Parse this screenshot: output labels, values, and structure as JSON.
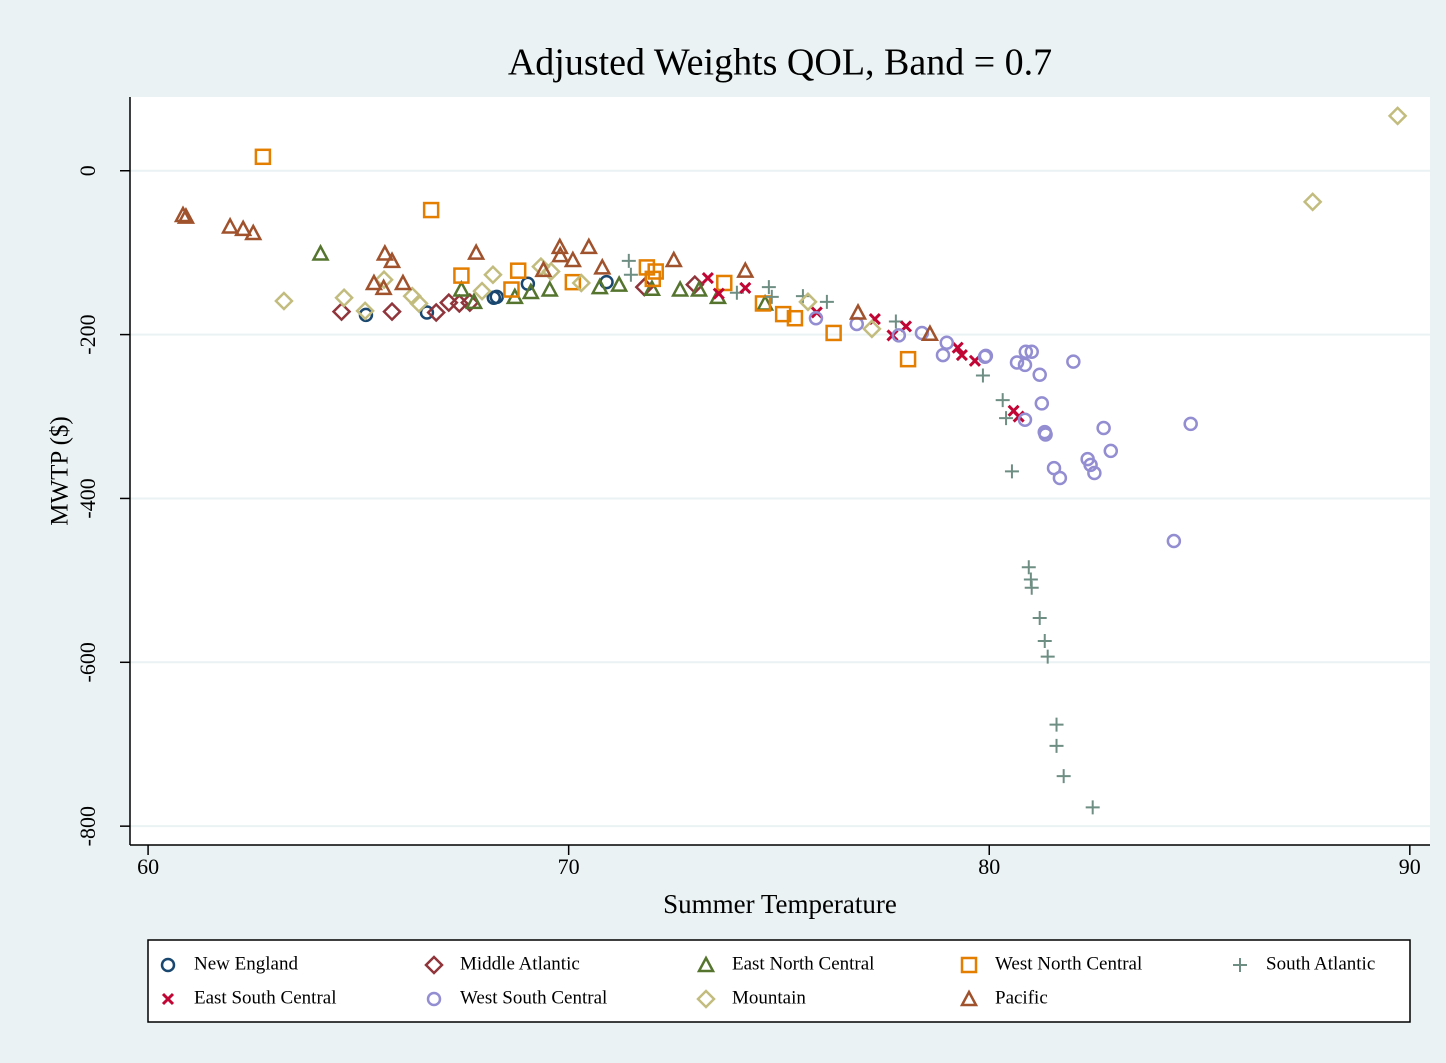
{
  "chart_data": {
    "type": "scatter",
    "title": "Adjusted Weights QOL, Band = 0.7",
    "x_label": "Summer Temperature",
    "y_label": "MWTP ($)",
    "xlim": [
      59.57,
      90.48
    ],
    "ylim": [
      -823,
      90
    ],
    "xticks": [
      60,
      70,
      80,
      90
    ],
    "yticks": [
      -800,
      -600,
      -400,
      -200,
      0
    ],
    "grid": true,
    "legend": "bottom",
    "series": [
      {
        "name": "New England",
        "color": "#1a476f",
        "symbol": "circle",
        "x": [
          65.18,
          66.63,
          68.22,
          68.29,
          69.03,
          70.9
        ],
        "values": [
          -176,
          -173,
          -155,
          -154,
          -138,
          -136
        ]
      },
      {
        "name": "Middle Atlantic",
        "color": "#90353b",
        "symbol": "diamond",
        "x": [
          64.6,
          65.8,
          66.85,
          67.15,
          67.4,
          67.65,
          71.8,
          73.0
        ],
        "values": [
          -172,
          -172,
          -173,
          -161,
          -162,
          -161,
          -142,
          -139
        ]
      },
      {
        "name": "East North Central",
        "color": "#55752f",
        "symbol": "triangle",
        "x": [
          64.1,
          67.45,
          67.75,
          68.72,
          69.1,
          69.55,
          70.74,
          71.2,
          71.98,
          72.65,
          73.1,
          73.55,
          74.67
        ],
        "values": [
          -101,
          -145,
          -160,
          -154,
          -148,
          -145,
          -142,
          -139,
          -144,
          -145,
          -145,
          -154,
          -162
        ]
      },
      {
        "name": "West North Central",
        "color": "#e37e00",
        "symbol": "square",
        "x": [
          62.73,
          66.73,
          67.45,
          68.8,
          68.64,
          70.1,
          71.86,
          72.07,
          72.0,
          73.7,
          74.62,
          75.1,
          75.38,
          76.3,
          78.07
        ],
        "values": [
          17,
          -48,
          -128,
          -122,
          -145,
          -136,
          -118,
          -123,
          -132,
          -137,
          -162,
          -175,
          -180,
          -198,
          -230
        ]
      },
      {
        "name": "South Atlantic",
        "color": "#6e8e84",
        "symbol": "plus",
        "x": [
          71.43,
          71.48,
          74.0,
          74.76,
          74.83,
          75.57,
          76.14,
          77.78,
          79.85,
          80.32,
          80.4,
          80.54,
          80.94,
          80.99,
          81.01,
          81.2,
          81.32,
          81.39,
          81.6,
          81.6,
          81.77,
          82.46
        ],
        "values": [
          -110,
          -127,
          -149,
          -142,
          -154,
          -153,
          -160,
          -184,
          -250,
          -280,
          -302,
          -367,
          -484,
          -499,
          -509,
          -546,
          -574,
          -593,
          -676,
          -702,
          -739,
          -777
        ]
      },
      {
        "name": "East South Central",
        "color": "#c10534",
        "symbol": "x",
        "x": [
          73.31,
          73.57,
          74.2,
          75.9,
          77.28,
          77.7,
          78.02,
          79.25,
          79.35,
          79.66,
          80.58,
          80.7
        ],
        "values": [
          -131,
          -150,
          -143,
          -173,
          -181,
          -201,
          -190,
          -216,
          -225,
          -232,
          -293,
          -300
        ]
      },
      {
        "name": "West South Central",
        "color": "#938dd2",
        "symbol": "circle",
        "x": [
          75.88,
          76.85,
          77.85,
          78.4,
          78.9,
          78.99,
          79.92,
          79.9,
          80.66,
          80.85,
          80.87,
          81.01,
          81.2,
          81.25,
          81.32,
          81.34,
          82.0,
          81.54,
          81.68,
          82.34,
          82.41,
          82.5,
          82.72,
          82.89,
          84.39,
          84.79,
          80.85
        ],
        "values": [
          -180,
          -187,
          -201,
          -198,
          -225,
          -210,
          -226,
          -227,
          -234,
          -237,
          -221,
          -221,
          -249,
          -284,
          -319,
          -322,
          -233,
          -363,
          -375,
          -352,
          -359,
          -369,
          -314,
          -342,
          -452,
          -309,
          -304
        ]
      },
      {
        "name": "Mountain",
        "color": "#c3bc7f",
        "symbol": "diamond",
        "x": [
          63.23,
          64.66,
          65.16,
          65.61,
          66.28,
          66.44,
          68.2,
          67.94,
          69.34,
          69.58,
          70.3,
          75.69,
          77.21,
          87.69,
          89.71
        ],
        "values": [
          -159,
          -155,
          -171,
          -133,
          -153,
          -162,
          -127,
          -147,
          -117,
          -123,
          -137,
          -160,
          -193,
          -38,
          67
        ]
      },
      {
        "name": "Pacific",
        "color": "#a0522d",
        "symbol": "triangle",
        "x": [
          60.83,
          60.9,
          61.95,
          62.26,
          62.5,
          65.63,
          65.8,
          65.37,
          65.6,
          66.06,
          67.8,
          69.79,
          69.8,
          70.1,
          70.48,
          70.8,
          69.4,
          72.5,
          74.2,
          76.88,
          78.59
        ],
        "values": [
          -54,
          -56,
          -68,
          -71,
          -76,
          -101,
          -110,
          -137,
          -143,
          -137,
          -100,
          -93,
          -103,
          -109,
          -93,
          -118,
          -121,
          -109,
          -122,
          -173,
          -199
        ]
      }
    ]
  }
}
